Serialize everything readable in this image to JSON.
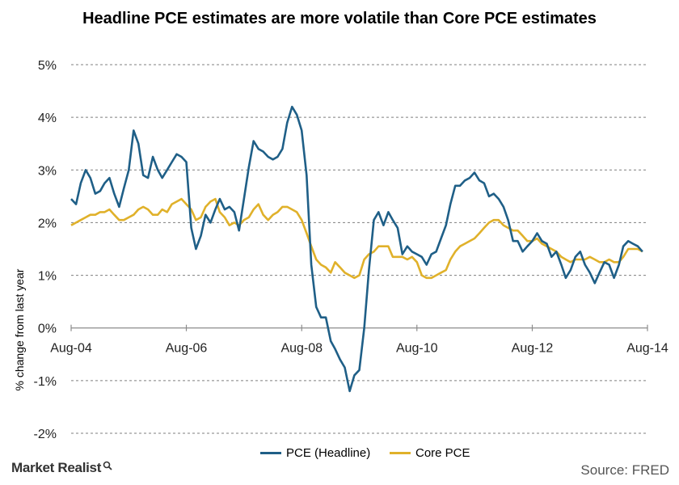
{
  "title": "Headline  PCE estimates  are more  volatile  than Core  PCE estimates",
  "colors": {
    "headline": "#1f5f87",
    "core": "#e0b12a",
    "grid": "#7f7f7f"
  },
  "chart_data": {
    "type": "line",
    "title": "Headline  PCE estimates  are more  volatile  than Core  PCE estimates",
    "ylabel": "% change from last year",
    "xlabel": "",
    "ylim": [
      -2,
      5
    ],
    "yticks": [
      "-2%",
      "-1%",
      "0%",
      "1%",
      "2%",
      "3%",
      "4%",
      "5%"
    ],
    "xticks": [
      "Aug-04",
      "Aug-06",
      "Aug-08",
      "Aug-10",
      "Aug-12",
      "Aug-14"
    ],
    "grid": "horizontal dashed",
    "legend": "bottom",
    "series": [
      {
        "name": "PCE (Headline)",
        "color": "#1f5f87",
        "points": [
          [
            "2004-08",
            2.45
          ],
          [
            "2004-09",
            2.35
          ],
          [
            "2004-10",
            2.75
          ],
          [
            "2004-11",
            3.0
          ],
          [
            "2004-12",
            2.85
          ],
          [
            "2005-01",
            2.55
          ],
          [
            "2005-02",
            2.6
          ],
          [
            "2005-03",
            2.75
          ],
          [
            "2005-04",
            2.85
          ],
          [
            "2005-05",
            2.55
          ],
          [
            "2005-06",
            2.3
          ],
          [
            "2005-07",
            2.65
          ],
          [
            "2005-08",
            3.0
          ],
          [
            "2005-09",
            3.75
          ],
          [
            "2005-10",
            3.5
          ],
          [
            "2005-11",
            2.9
          ],
          [
            "2005-12",
            2.85
          ],
          [
            "2006-01",
            3.25
          ],
          [
            "2006-02",
            3.0
          ],
          [
            "2006-03",
            2.85
          ],
          [
            "2006-04",
            3.0
          ],
          [
            "2006-05",
            3.15
          ],
          [
            "2006-06",
            3.3
          ],
          [
            "2006-07",
            3.25
          ],
          [
            "2006-08",
            3.15
          ],
          [
            "2006-09",
            1.9
          ],
          [
            "2006-10",
            1.5
          ],
          [
            "2006-11",
            1.75
          ],
          [
            "2006-12",
            2.15
          ],
          [
            "2007-01",
            2.0
          ],
          [
            "2007-02",
            2.25
          ],
          [
            "2007-03",
            2.45
          ],
          [
            "2007-04",
            2.25
          ],
          [
            "2007-05",
            2.3
          ],
          [
            "2007-06",
            2.2
          ],
          [
            "2007-07",
            1.85
          ],
          [
            "2007-08",
            2.45
          ],
          [
            "2007-09",
            3.05
          ],
          [
            "2007-10",
            3.55
          ],
          [
            "2007-11",
            3.4
          ],
          [
            "2007-12",
            3.35
          ],
          [
            "2008-01",
            3.25
          ],
          [
            "2008-02",
            3.2
          ],
          [
            "2008-03",
            3.25
          ],
          [
            "2008-04",
            3.4
          ],
          [
            "2008-05",
            3.9
          ],
          [
            "2008-06",
            4.2
          ],
          [
            "2008-07",
            4.05
          ],
          [
            "2008-08",
            3.75
          ],
          [
            "2008-09",
            2.9
          ],
          [
            "2008-10",
            1.2
          ],
          [
            "2008-11",
            0.4
          ],
          [
            "2008-12",
            0.2
          ],
          [
            "2009-01",
            0.2
          ],
          [
            "2009-02",
            -0.25
          ],
          [
            "2009-03",
            -0.4
          ],
          [
            "2009-04",
            -0.6
          ],
          [
            "2009-05",
            -0.75
          ],
          [
            "2009-06",
            -1.2
          ],
          [
            "2009-07",
            -0.9
          ],
          [
            "2009-08",
            -0.8
          ],
          [
            "2009-09",
            0.0
          ],
          [
            "2009-10",
            1.1
          ],
          [
            "2009-11",
            2.05
          ],
          [
            "2009-12",
            2.2
          ],
          [
            "2010-01",
            1.95
          ],
          [
            "2010-02",
            2.2
          ],
          [
            "2010-03",
            2.05
          ],
          [
            "2010-04",
            1.9
          ],
          [
            "2010-05",
            1.4
          ],
          [
            "2010-06",
            1.55
          ],
          [
            "2010-07",
            1.45
          ],
          [
            "2010-08",
            1.4
          ],
          [
            "2010-09",
            1.35
          ],
          [
            "2010-10",
            1.2
          ],
          [
            "2010-11",
            1.4
          ],
          [
            "2010-12",
            1.45
          ],
          [
            "2011-01",
            1.7
          ],
          [
            "2011-02",
            1.95
          ],
          [
            "2011-03",
            2.35
          ],
          [
            "2011-04",
            2.7
          ],
          [
            "2011-05",
            2.7
          ],
          [
            "2011-06",
            2.8
          ],
          [
            "2011-07",
            2.85
          ],
          [
            "2011-08",
            2.95
          ],
          [
            "2011-09",
            2.8
          ],
          [
            "2011-10",
            2.75
          ],
          [
            "2011-11",
            2.5
          ],
          [
            "2011-12",
            2.55
          ],
          [
            "2012-01",
            2.45
          ],
          [
            "2012-02",
            2.3
          ],
          [
            "2012-03",
            2.05
          ],
          [
            "2012-04",
            1.65
          ],
          [
            "2012-05",
            1.65
          ],
          [
            "2012-06",
            1.45
          ],
          [
            "2012-07",
            1.55
          ],
          [
            "2012-08",
            1.65
          ],
          [
            "2012-09",
            1.8
          ],
          [
            "2012-10",
            1.65
          ],
          [
            "2012-11",
            1.6
          ],
          [
            "2012-12",
            1.35
          ],
          [
            "2013-01",
            1.45
          ],
          [
            "2013-02",
            1.2
          ],
          [
            "2013-03",
            0.95
          ],
          [
            "2013-04",
            1.1
          ],
          [
            "2013-05",
            1.35
          ],
          [
            "2013-06",
            1.45
          ],
          [
            "2013-07",
            1.2
          ],
          [
            "2013-08",
            1.05
          ],
          [
            "2013-09",
            0.85
          ],
          [
            "2013-10",
            1.05
          ],
          [
            "2013-11",
            1.25
          ],
          [
            "2013-12",
            1.2
          ],
          [
            "2014-01",
            0.95
          ],
          [
            "2014-02",
            1.2
          ],
          [
            "2014-03",
            1.55
          ],
          [
            "2014-04",
            1.65
          ],
          [
            "2014-05",
            1.6
          ],
          [
            "2014-06",
            1.55
          ],
          [
            "2014-07",
            1.45
          ]
        ]
      },
      {
        "name": "Core PCE",
        "color": "#e0b12a",
        "points": [
          [
            "2004-08",
            1.95
          ],
          [
            "2004-09",
            2.0
          ],
          [
            "2004-10",
            2.05
          ],
          [
            "2004-11",
            2.1
          ],
          [
            "2004-12",
            2.15
          ],
          [
            "2005-01",
            2.15
          ],
          [
            "2005-02",
            2.2
          ],
          [
            "2005-03",
            2.2
          ],
          [
            "2005-04",
            2.25
          ],
          [
            "2005-05",
            2.15
          ],
          [
            "2005-06",
            2.05
          ],
          [
            "2005-07",
            2.05
          ],
          [
            "2005-08",
            2.1
          ],
          [
            "2005-09",
            2.15
          ],
          [
            "2005-10",
            2.25
          ],
          [
            "2005-11",
            2.3
          ],
          [
            "2005-12",
            2.25
          ],
          [
            "2006-01",
            2.15
          ],
          [
            "2006-02",
            2.15
          ],
          [
            "2006-03",
            2.25
          ],
          [
            "2006-04",
            2.2
          ],
          [
            "2006-05",
            2.35
          ],
          [
            "2006-06",
            2.4
          ],
          [
            "2006-07",
            2.45
          ],
          [
            "2006-08",
            2.35
          ],
          [
            "2006-09",
            2.25
          ],
          [
            "2006-10",
            2.05
          ],
          [
            "2006-11",
            2.1
          ],
          [
            "2006-12",
            2.3
          ],
          [
            "2007-01",
            2.4
          ],
          [
            "2007-02",
            2.45
          ],
          [
            "2007-03",
            2.2
          ],
          [
            "2007-04",
            2.1
          ],
          [
            "2007-05",
            1.95
          ],
          [
            "2007-06",
            2.0
          ],
          [
            "2007-07",
            1.95
          ],
          [
            "2007-08",
            2.05
          ],
          [
            "2007-09",
            2.1
          ],
          [
            "2007-10",
            2.25
          ],
          [
            "2007-11",
            2.35
          ],
          [
            "2007-12",
            2.15
          ],
          [
            "2008-01",
            2.05
          ],
          [
            "2008-02",
            2.15
          ],
          [
            "2008-03",
            2.2
          ],
          [
            "2008-04",
            2.3
          ],
          [
            "2008-05",
            2.3
          ],
          [
            "2008-06",
            2.25
          ],
          [
            "2008-07",
            2.2
          ],
          [
            "2008-08",
            2.05
          ],
          [
            "2008-09",
            1.8
          ],
          [
            "2008-10",
            1.55
          ],
          [
            "2008-11",
            1.3
          ],
          [
            "2008-12",
            1.2
          ],
          [
            "2009-01",
            1.15
          ],
          [
            "2009-02",
            1.05
          ],
          [
            "2009-03",
            1.25
          ],
          [
            "2009-04",
            1.15
          ],
          [
            "2009-05",
            1.05
          ],
          [
            "2009-06",
            1.0
          ],
          [
            "2009-07",
            0.95
          ],
          [
            "2009-08",
            1.0
          ],
          [
            "2009-09",
            1.3
          ],
          [
            "2009-10",
            1.4
          ],
          [
            "2009-11",
            1.45
          ],
          [
            "2009-12",
            1.55
          ],
          [
            "2010-01",
            1.55
          ],
          [
            "2010-02",
            1.55
          ],
          [
            "2010-03",
            1.35
          ],
          [
            "2010-04",
            1.35
          ],
          [
            "2010-05",
            1.35
          ],
          [
            "2010-06",
            1.3
          ],
          [
            "2010-07",
            1.35
          ],
          [
            "2010-08",
            1.25
          ],
          [
            "2010-09",
            1.0
          ],
          [
            "2010-10",
            0.95
          ],
          [
            "2010-11",
            0.95
          ],
          [
            "2010-12",
            1.0
          ],
          [
            "2011-01",
            1.05
          ],
          [
            "2011-02",
            1.1
          ],
          [
            "2011-03",
            1.3
          ],
          [
            "2011-04",
            1.45
          ],
          [
            "2011-05",
            1.55
          ],
          [
            "2011-06",
            1.6
          ],
          [
            "2011-07",
            1.65
          ],
          [
            "2011-08",
            1.7
          ],
          [
            "2011-09",
            1.8
          ],
          [
            "2011-10",
            1.9
          ],
          [
            "2011-11",
            2.0
          ],
          [
            "2011-12",
            2.05
          ],
          [
            "2012-01",
            2.05
          ],
          [
            "2012-02",
            1.95
          ],
          [
            "2012-03",
            1.9
          ],
          [
            "2012-04",
            1.85
          ],
          [
            "2012-05",
            1.85
          ],
          [
            "2012-06",
            1.75
          ],
          [
            "2012-07",
            1.65
          ],
          [
            "2012-08",
            1.65
          ],
          [
            "2012-09",
            1.7
          ],
          [
            "2012-10",
            1.6
          ],
          [
            "2012-11",
            1.55
          ],
          [
            "2012-12",
            1.5
          ],
          [
            "2013-01",
            1.45
          ],
          [
            "2013-02",
            1.35
          ],
          [
            "2013-03",
            1.3
          ],
          [
            "2013-04",
            1.25
          ],
          [
            "2013-05",
            1.3
          ],
          [
            "2013-06",
            1.3
          ],
          [
            "2013-07",
            1.3
          ],
          [
            "2013-08",
            1.35
          ],
          [
            "2013-09",
            1.3
          ],
          [
            "2013-10",
            1.25
          ],
          [
            "2013-11",
            1.25
          ],
          [
            "2013-12",
            1.3
          ],
          [
            "2014-01",
            1.25
          ],
          [
            "2014-02",
            1.25
          ],
          [
            "2014-03",
            1.35
          ],
          [
            "2014-04",
            1.5
          ],
          [
            "2014-05",
            1.5
          ],
          [
            "2014-06",
            1.5
          ],
          [
            "2014-07",
            1.45
          ]
        ]
      }
    ]
  },
  "legend": {
    "headline_label": "PCE (Headline)",
    "core_label": "Core PCE"
  },
  "logo_text": "Market Realist",
  "source_text": "Source: FRED"
}
